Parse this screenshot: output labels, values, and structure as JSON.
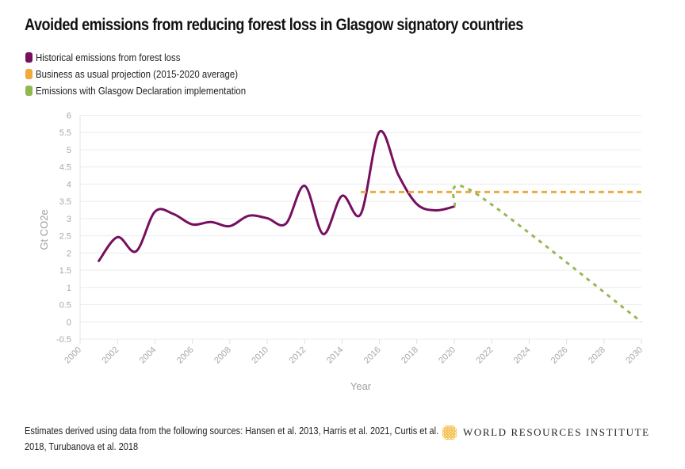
{
  "chart_data": {
    "type": "line",
    "title": "Avoided emissions from reducing forest loss in Glasgow signatory countries",
    "xlabel": "Year",
    "ylabel": "Gt CO2e",
    "xlim": [
      2000,
      2030
    ],
    "ylim": [
      -0.5,
      6
    ],
    "x_ticks": [
      "2000",
      "2002",
      "2004",
      "2006",
      "2008",
      "2010",
      "2012",
      "2014",
      "2016",
      "2018",
      "2020",
      "2022",
      "2024",
      "2026",
      "2028",
      "2030"
    ],
    "y_ticks": [
      "-0.5",
      "0",
      "0.5",
      "1",
      "1.5",
      "2",
      "2.5",
      "3",
      "3.5",
      "4",
      "4.5",
      "5",
      "5.5",
      "6"
    ],
    "grid": true,
    "legend_position": "top-left",
    "series": [
      {
        "name": "Historical emissions from forest loss",
        "color": "#760f5f",
        "style": "solid",
        "x": [
          2001,
          2002,
          2003,
          2004,
          2005,
          2006,
          2007,
          2008,
          2009,
          2010,
          2011,
          2012,
          2013,
          2014,
          2015,
          2016,
          2017,
          2018,
          2019,
          2020
        ],
        "values": [
          1.77,
          2.46,
          2.05,
          3.2,
          3.13,
          2.83,
          2.9,
          2.78,
          3.08,
          3.01,
          2.85,
          3.95,
          2.55,
          3.66,
          3.13,
          5.52,
          4.28,
          3.42,
          3.24,
          3.35
        ]
      },
      {
        "name": "Business as usual projection (2015-2020 average)",
        "color": "#eaac3e",
        "style": "dashed",
        "x": [
          2015,
          2030
        ],
        "values": [
          3.77,
          3.77
        ]
      },
      {
        "name": "Emissions with Glasgow Declaration implementation",
        "color": "#97b856",
        "style": "dashed",
        "x": [
          2020,
          2021,
          2030
        ],
        "values": [
          3.35,
          3.78,
          0
        ]
      }
    ]
  },
  "legend": [
    {
      "label": "Historical emissions from forest loss",
      "color": "#760f5f"
    },
    {
      "label": "Business as usual projection (2015-2020 average)",
      "color": "#f2a83a"
    },
    {
      "label": "Emissions with Glasgow Declaration implementation",
      "color": "#8fb84e"
    }
  ],
  "footer": {
    "line1": "Estimates derived using data from the following sources: Hansen et al. 2013, Harris et al. 2021, Curtis et al.",
    "line2": "2018, Turubanova et al. 2018"
  },
  "logo": {
    "text": "WORLD RESOURCES INSTITUTE",
    "icon": "wri-lattice-icon",
    "color": "#f4c04e"
  }
}
